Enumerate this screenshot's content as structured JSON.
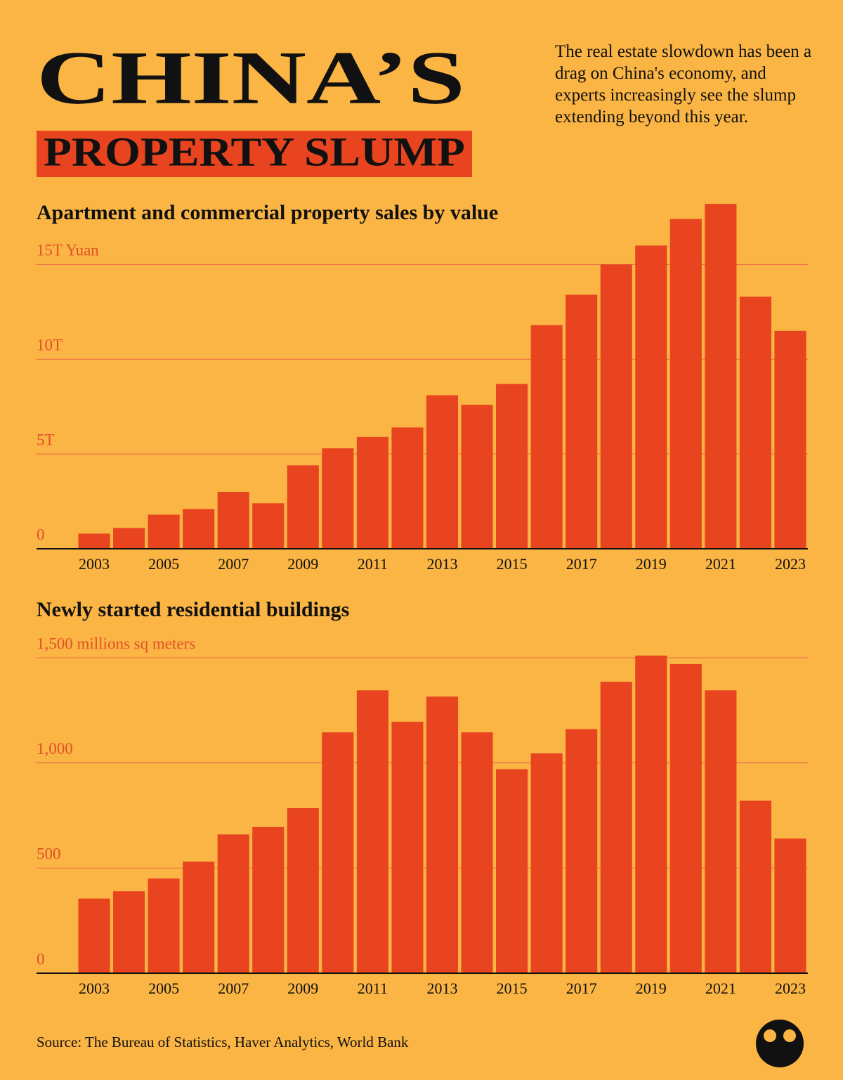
{
  "header": {
    "title": "CHINA’S",
    "subtitle": "PROPERTY SLUMP",
    "description": "The real estate slowdown has been a drag on China's economy, and experts increasingly see the slump extending beyond this year."
  },
  "chart_data": [
    {
      "type": "bar",
      "title": "Apartment and commercial property sales by value",
      "categories": [
        "2003",
        null,
        "2005",
        null,
        "2007",
        null,
        "2009",
        null,
        "2011",
        null,
        "2013",
        null,
        "2015",
        null,
        "2017",
        null,
        "2019",
        null,
        "2021",
        null,
        "2023"
      ],
      "values": [
        0.8,
        1.1,
        1.8,
        2.1,
        3.0,
        2.4,
        4.4,
        5.3,
        5.9,
        6.4,
        8.1,
        7.6,
        8.7,
        11.8,
        13.4,
        15.0,
        16.0,
        17.4,
        18.2,
        13.3,
        11.5
      ],
      "color": "#e8441f",
      "ylim": [
        0,
        18.5
      ],
      "yticks": [
        0,
        {
          "value": 5,
          "label": "5T"
        },
        {
          "value": 10,
          "label": "10T"
        },
        {
          "value": 15,
          "label": "15T Yuan"
        }
      ],
      "grid": true
    },
    {
      "type": "bar",
      "title": "Newly started residential buildings",
      "categories": [
        "2003",
        null,
        "2005",
        null,
        "2007",
        null,
        "2009",
        null,
        "2011",
        null,
        "2013",
        null,
        "2015",
        null,
        "2017",
        null,
        "2019",
        null,
        "2021",
        null,
        "2023"
      ],
      "values": [
        355,
        390,
        450,
        530,
        660,
        695,
        785,
        1145,
        1345,
        1195,
        1315,
        1145,
        970,
        1045,
        1160,
        1385,
        1510,
        1470,
        1345,
        820,
        640
      ],
      "color": "#e8441f",
      "ylim": [
        0,
        1520
      ],
      "yticks": [
        0,
        500,
        {
          "value": 1000,
          "label": "1,000"
        },
        {
          "value": 1500,
          "label": "1,500 millions sq meters"
        }
      ],
      "grid": true
    }
  ],
  "source": "Source: The Bureau of Statistics, Haver Analytics, World Bank"
}
